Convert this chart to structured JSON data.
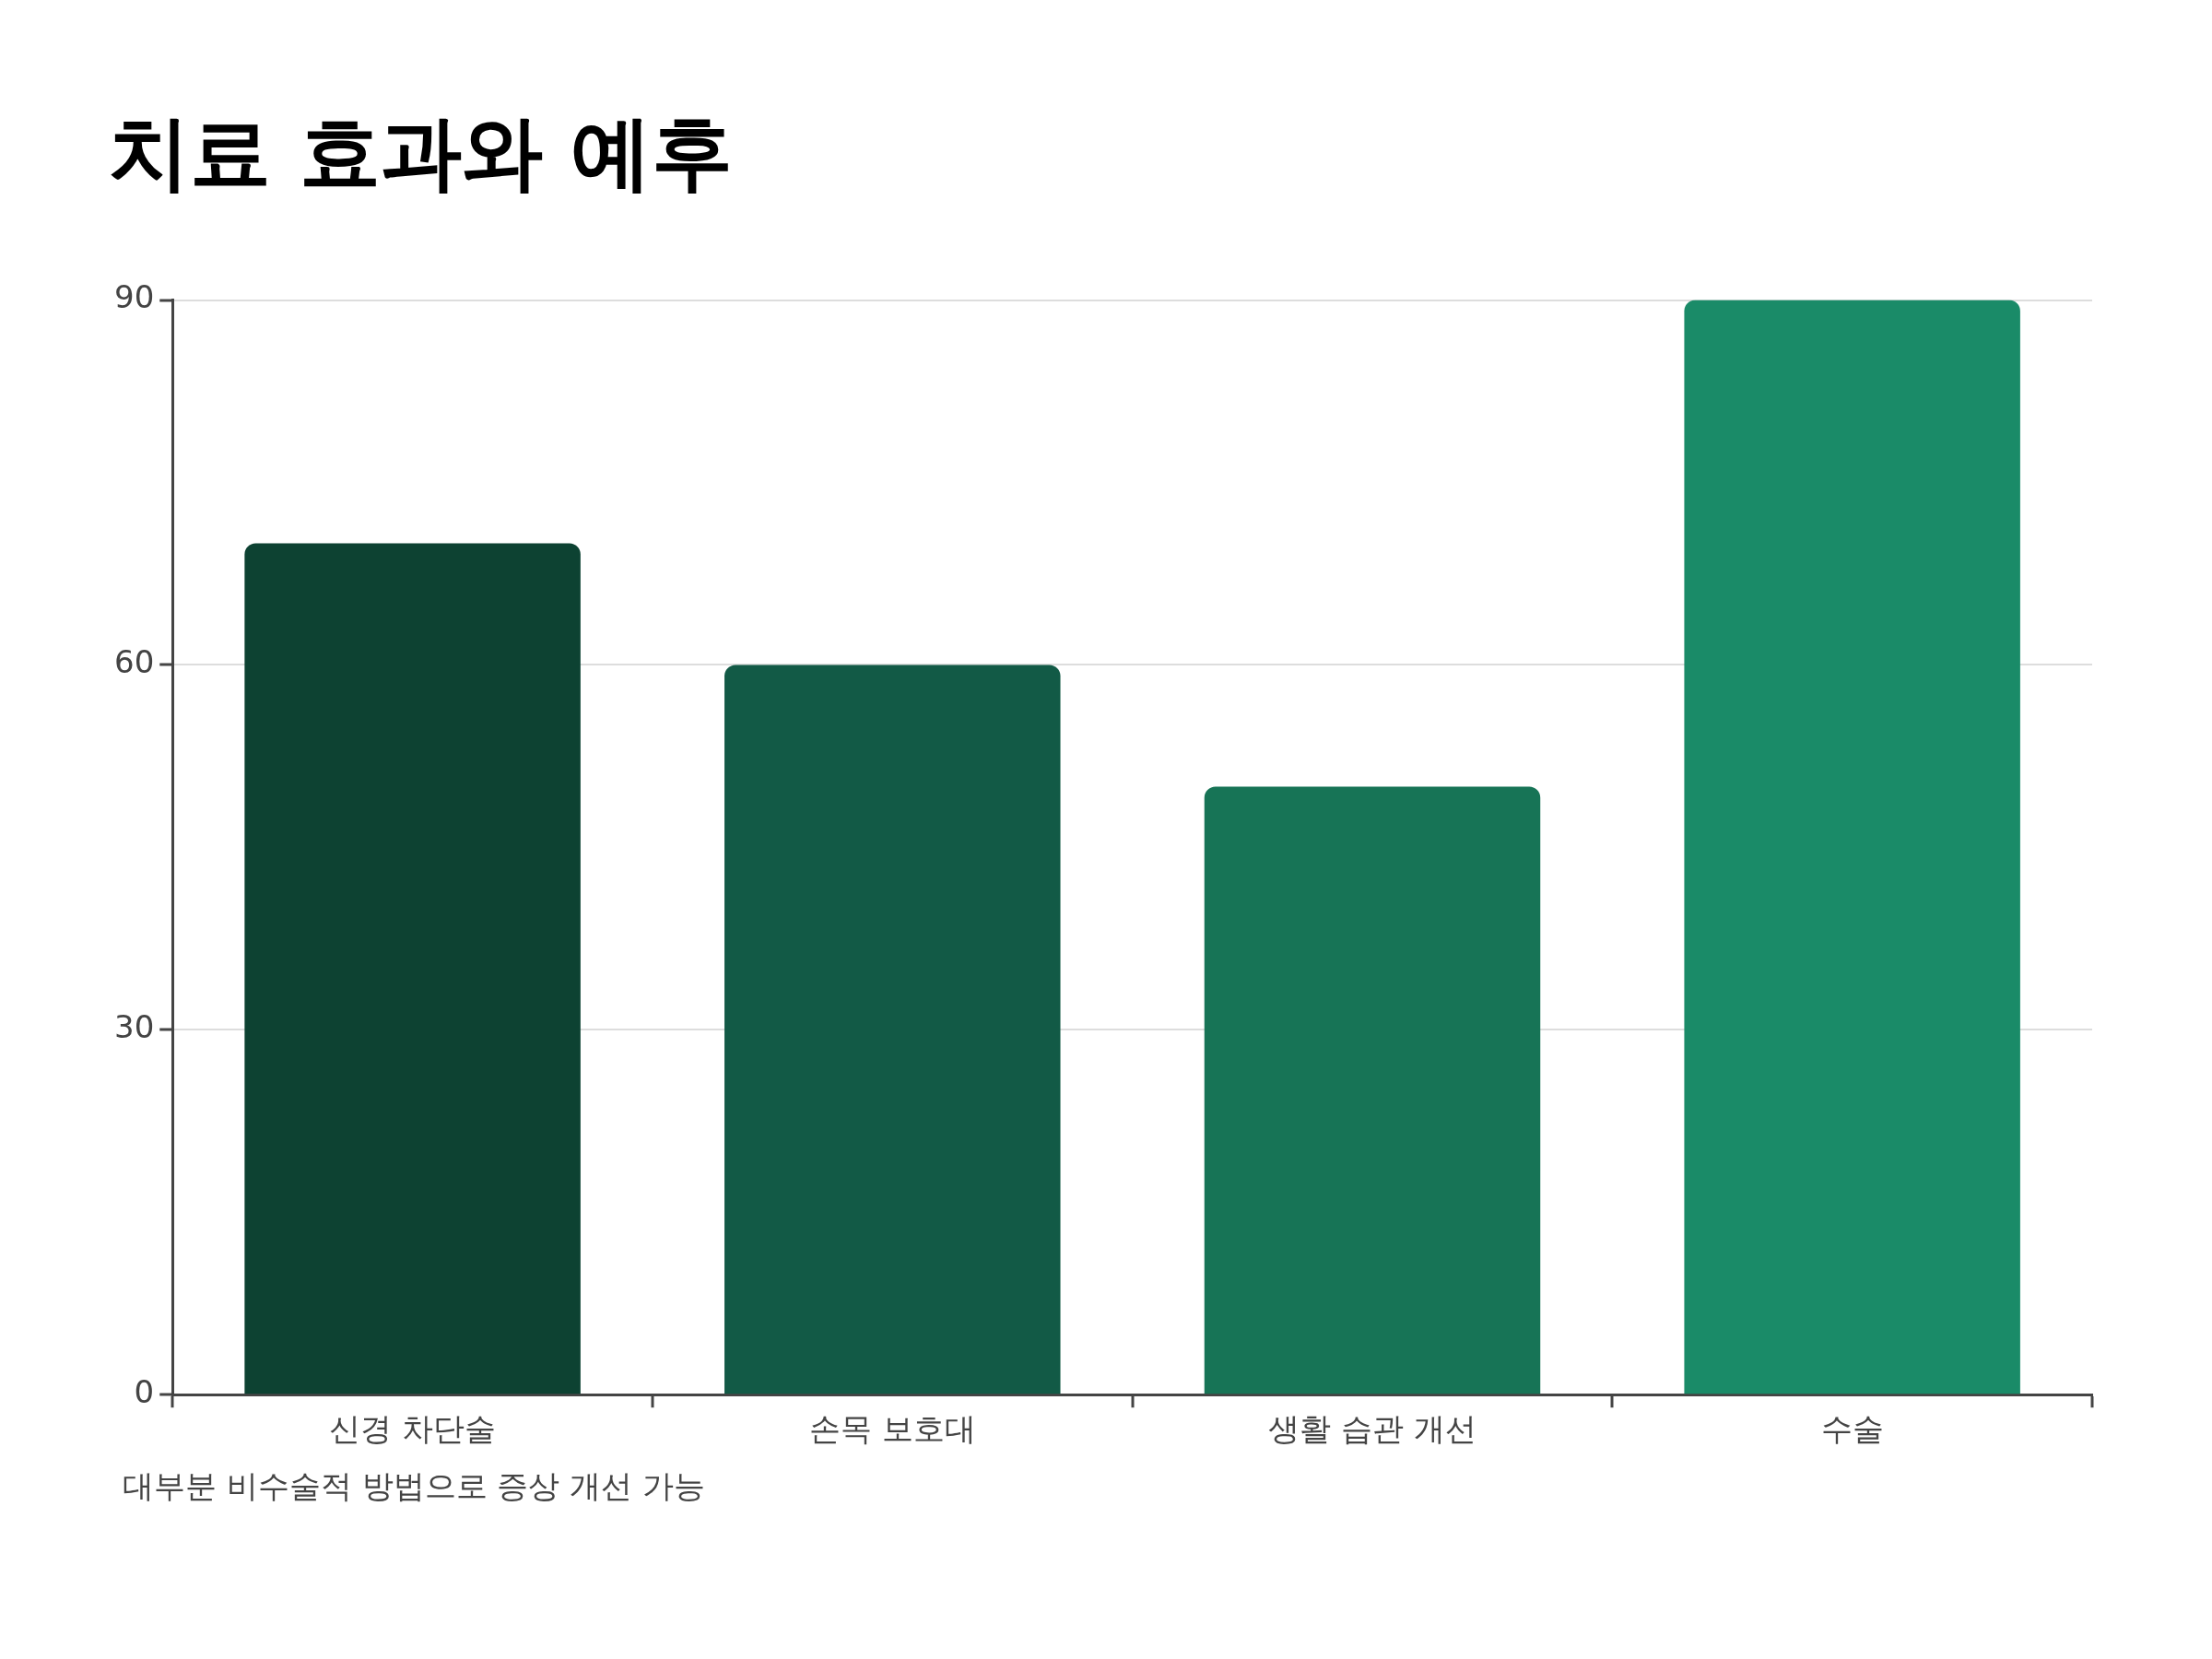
{
  "chart_data": {
    "type": "bar",
    "title": "치료 효과와 예후",
    "categories": [
      "신경 차단술",
      "손목 보호대",
      "생활 습관 개선",
      "수술"
    ],
    "values": [
      70,
      60,
      50,
      90
    ],
    "colors": [
      "#0d4232",
      "#125a46",
      "#177456",
      "#1a8b68"
    ],
    "ylim": [
      0,
      90
    ],
    "yticks": [
      0,
      30,
      60,
      90
    ],
    "grid": "y",
    "legend": false,
    "annotations": [
      "대부분 비수술적 방법으로 증상 개선 가능"
    ]
  }
}
